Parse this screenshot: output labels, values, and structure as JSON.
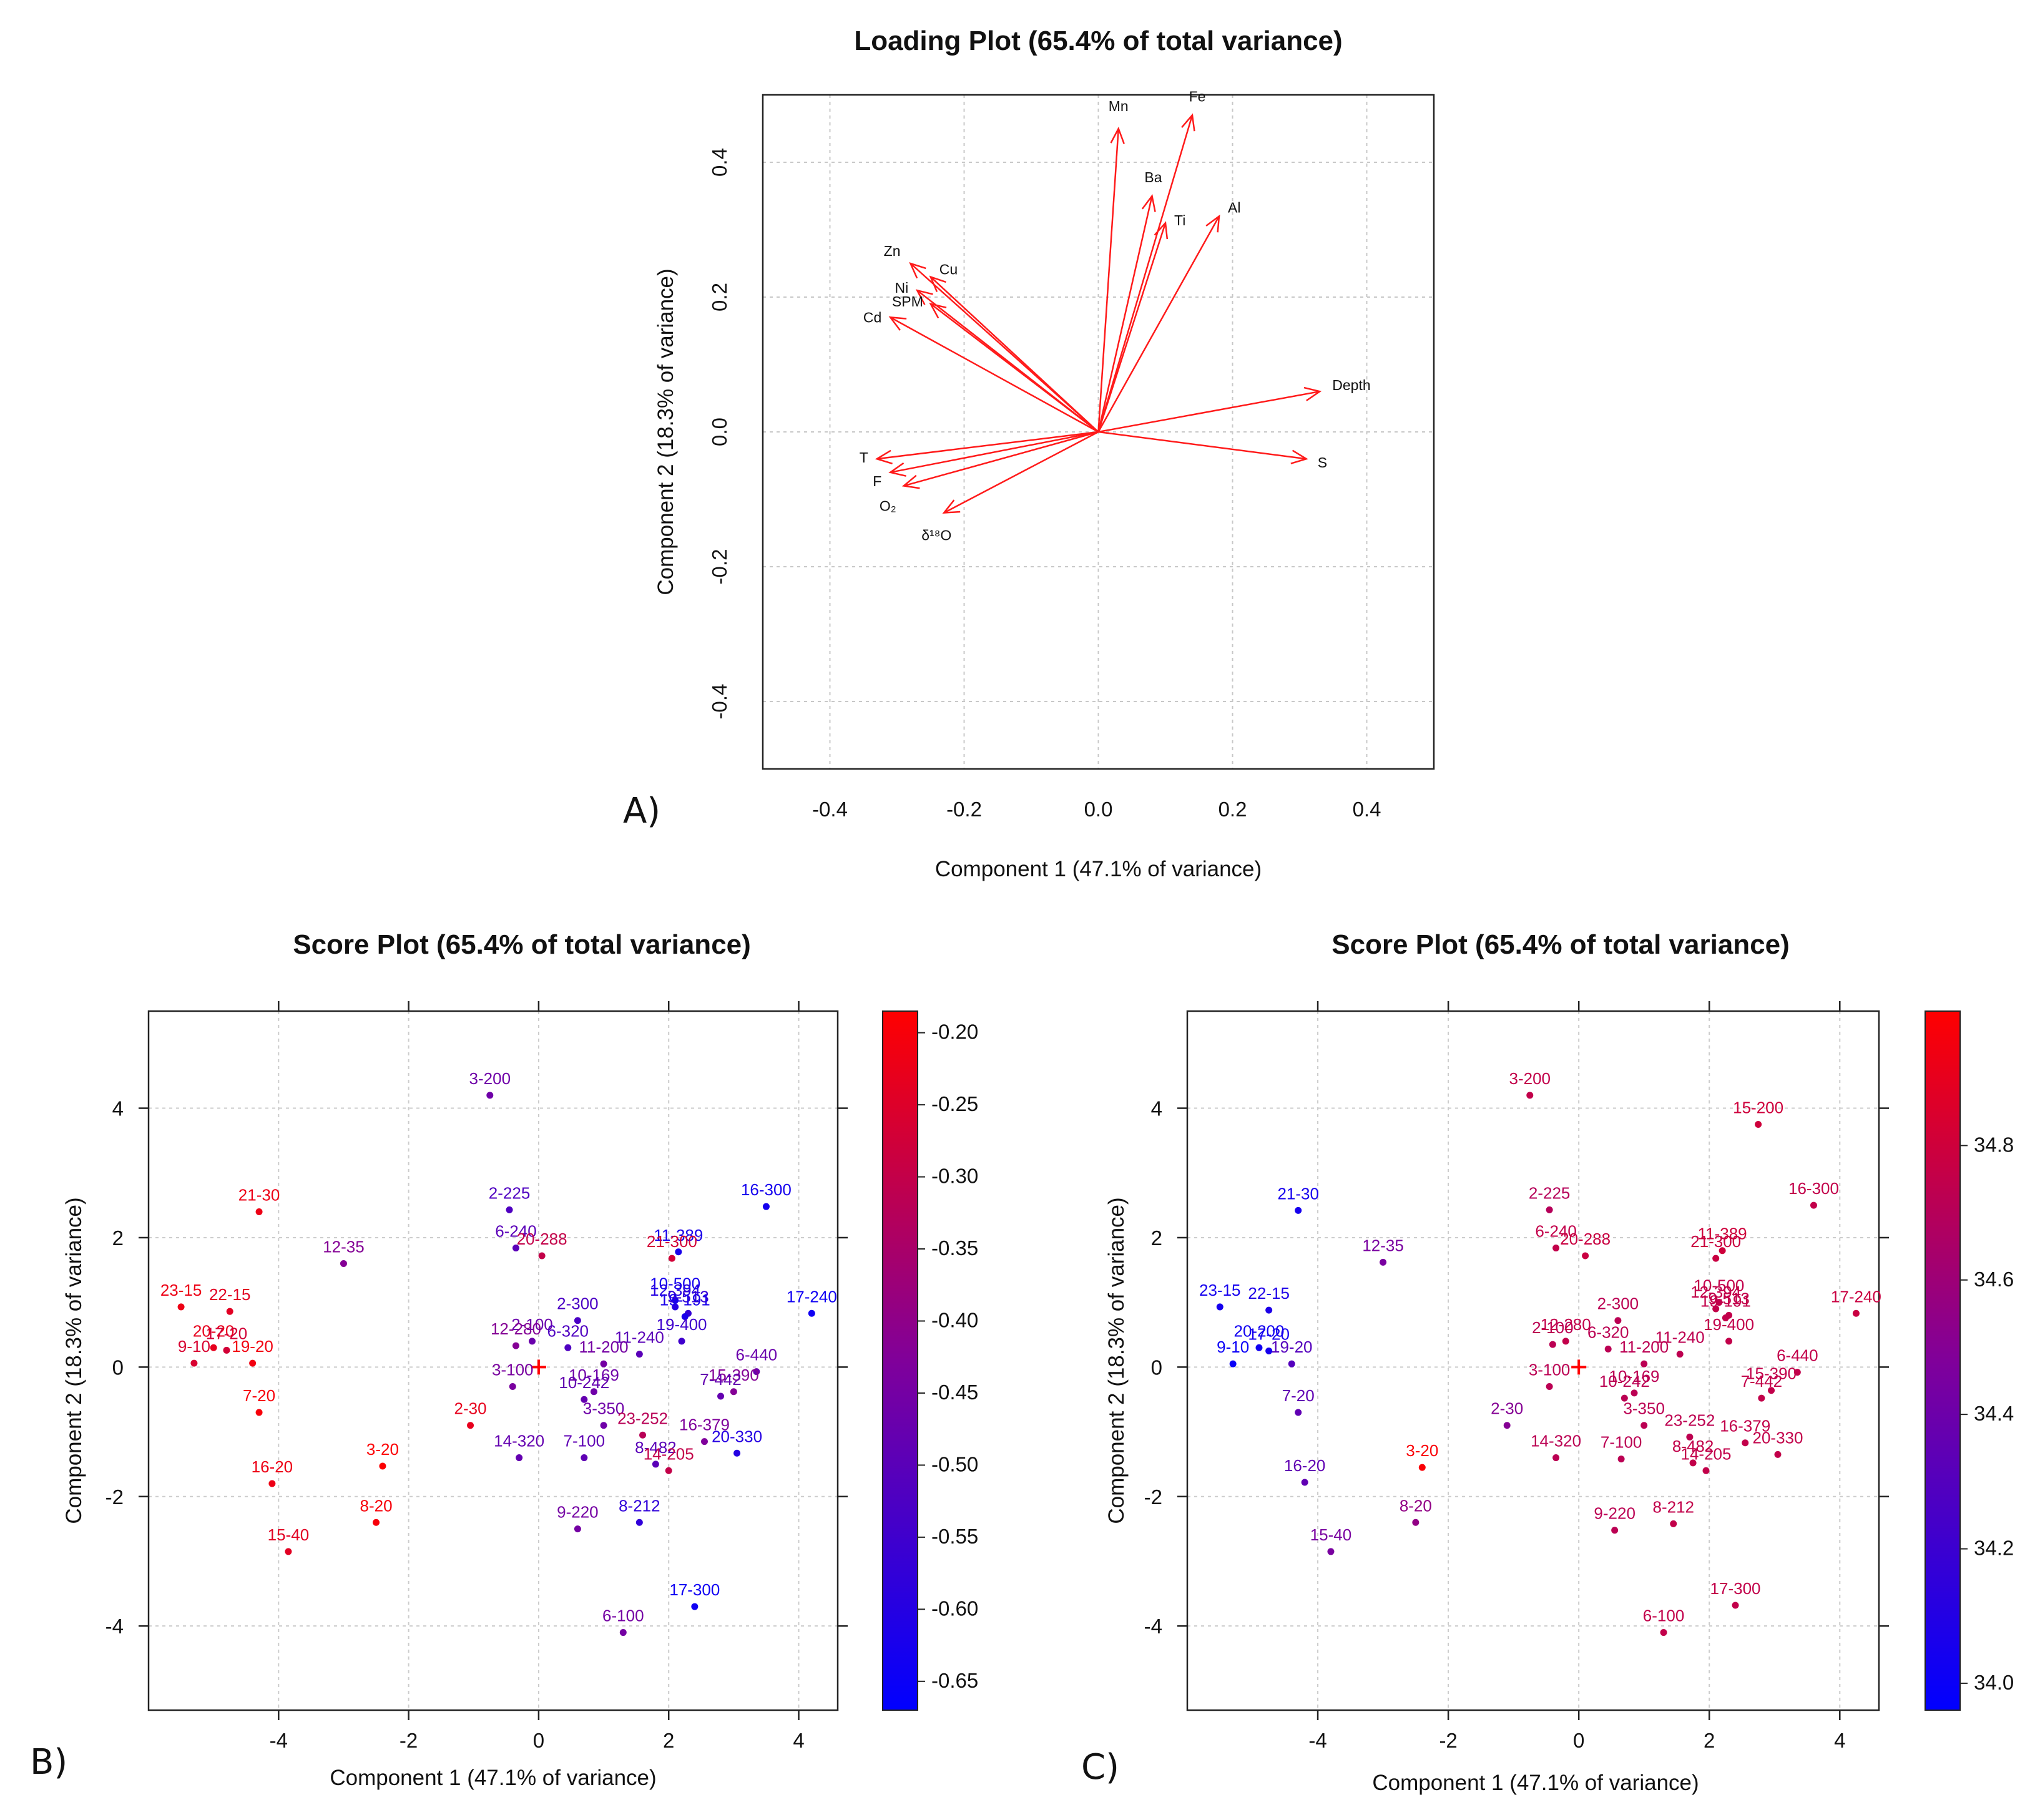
{
  "chart_data": [
    {
      "type": "biplot-loadings",
      "panel_label": "A)",
      "title": "Loading Plot (65.4% of total variance)",
      "xlabel": "Component 1 (47.1% of variance)",
      "ylabel": "Component 2 (18.3% of variance)",
      "xlim": [
        -0.5,
        0.5
      ],
      "ylim": [
        -0.5,
        0.5
      ],
      "grid": true,
      "xticks": [
        "-0.4",
        "-0.2",
        "0.0",
        "0.2",
        "0.4"
      ],
      "yticks": [
        "-0.4",
        "-0.2",
        "0.0",
        "0.2",
        "0.4"
      ],
      "vectors": [
        {
          "name": "Mn",
          "x": 0.03,
          "y": 0.45
        },
        {
          "name": "Fe",
          "x": 0.14,
          "y": 0.47
        },
        {
          "name": "Ba",
          "x": 0.08,
          "y": 0.35
        },
        {
          "name": "Ti",
          "x": 0.1,
          "y": 0.31
        },
        {
          "name": "Al",
          "x": 0.18,
          "y": 0.32
        },
        {
          "name": "Zn",
          "x": -0.28,
          "y": 0.25
        },
        {
          "name": "Cu",
          "x": -0.25,
          "y": 0.23
        },
        {
          "name": "Ni",
          "x": -0.27,
          "y": 0.21
        },
        {
          "name": "SPM",
          "x": -0.25,
          "y": 0.19
        },
        {
          "name": "Cd",
          "x": -0.31,
          "y": 0.17
        },
        {
          "name": "Depth",
          "x": 0.33,
          "y": 0.06
        },
        {
          "name": "S",
          "x": 0.31,
          "y": -0.04
        },
        {
          "name": "T",
          "x": -0.33,
          "y": -0.04
        },
        {
          "name": "F",
          "x": -0.31,
          "y": -0.06
        },
        {
          "name": "O₂",
          "x": -0.29,
          "y": -0.08
        },
        {
          "name": "δ¹⁸O",
          "x": -0.23,
          "y": -0.12
        }
      ]
    },
    {
      "type": "scatter",
      "panel_label": "B)",
      "title": "Score Plot (65.4% of total variance)",
      "xlabel": "Component 1 (47.1% of variance)",
      "ylabel": "Component 2 (18.3% of variance)",
      "xlim": [
        -6,
        4.6
      ],
      "ylim": [
        -5.3,
        5.5
      ],
      "grid": true,
      "xticks": [
        "-4",
        "-2",
        "0",
        "2",
        "4"
      ],
      "yticks": [
        "-4",
        "-2",
        "0",
        "2",
        "4"
      ],
      "colorbar": {
        "min": -0.67,
        "max": -0.185,
        "ticks": [
          "-0.20",
          "-0.25",
          "-0.30",
          "-0.35",
          "-0.40",
          "-0.45",
          "-0.50",
          "-0.55",
          "-0.60",
          "-0.65"
        ]
      },
      "points": [
        {
          "label": "3-200",
          "x": -0.75,
          "y": 4.2,
          "c": -0.46
        },
        {
          "label": "2-225",
          "x": -0.45,
          "y": 2.43,
          "c": -0.52
        },
        {
          "label": "21-30",
          "x": -4.3,
          "y": 2.4,
          "c": -0.22
        },
        {
          "label": "16-300",
          "x": 3.5,
          "y": 2.48,
          "c": -0.63
        },
        {
          "label": "6-240",
          "x": -0.35,
          "y": 1.84,
          "c": -0.5
        },
        {
          "label": "20-288",
          "x": 0.05,
          "y": 1.72,
          "c": -0.3
        },
        {
          "label": "11-389",
          "x": 2.15,
          "y": 1.78,
          "c": -0.62
        },
        {
          "label": "21-300",
          "x": 2.05,
          "y": 1.68,
          "c": -0.27
        },
        {
          "label": "12-35",
          "x": -3.0,
          "y": 1.6,
          "c": -0.42
        },
        {
          "label": "23-15",
          "x": -5.5,
          "y": 0.93,
          "c": -0.22
        },
        {
          "label": "22-15",
          "x": -4.75,
          "y": 0.86,
          "c": -0.24
        },
        {
          "label": "17-240",
          "x": 4.2,
          "y": 0.83,
          "c": -0.64
        },
        {
          "label": "10-500",
          "x": 2.1,
          "y": 1.03,
          "c": -0.63
        },
        {
          "label": "12-394",
          "x": 2.1,
          "y": 0.93,
          "c": -0.6
        },
        {
          "label": "9-513",
          "x": 2.3,
          "y": 0.83,
          "c": -0.57
        },
        {
          "label": "19-191",
          "x": 2.25,
          "y": 0.78,
          "c": -0.62
        },
        {
          "label": "2-300",
          "x": 0.6,
          "y": 0.72,
          "c": -0.53
        },
        {
          "label": "2-100",
          "x": -0.1,
          "y": 0.4,
          "c": -0.47
        },
        {
          "label": "6-320",
          "x": 0.45,
          "y": 0.3,
          "c": -0.52
        },
        {
          "label": "12-280",
          "x": -0.35,
          "y": 0.33,
          "c": -0.42
        },
        {
          "label": "11-240",
          "x": 1.55,
          "y": 0.2,
          "c": -0.5
        },
        {
          "label": "19-400",
          "x": 2.2,
          "y": 0.4,
          "c": -0.55
        },
        {
          "label": "6-440",
          "x": 3.35,
          "y": -0.07,
          "c": -0.47
        },
        {
          "label": "20-20",
          "x": -5.0,
          "y": 0.3,
          "c": -0.23
        },
        {
          "label": "17-20",
          "x": -4.8,
          "y": 0.26,
          "c": -0.27
        },
        {
          "label": "9-10",
          "x": -5.3,
          "y": 0.06,
          "c": -0.26
        },
        {
          "label": "19-20",
          "x": -4.4,
          "y": 0.06,
          "c": -0.21
        },
        {
          "label": "11-200",
          "x": 1.0,
          "y": 0.05,
          "c": -0.45
        },
        {
          "label": "3-100",
          "x": -0.4,
          "y": -0.3,
          "c": -0.44
        },
        {
          "label": "10-169",
          "x": 0.85,
          "y": -0.38,
          "c": -0.46
        },
        {
          "label": "10-242",
          "x": 0.7,
          "y": -0.5,
          "c": -0.48
        },
        {
          "label": "15-390",
          "x": 3.0,
          "y": -0.38,
          "c": -0.42
        },
        {
          "label": "7-442",
          "x": 2.8,
          "y": -0.45,
          "c": -0.48
        },
        {
          "label": "2-30",
          "x": -1.05,
          "y": -0.9,
          "c": -0.23
        },
        {
          "label": "7-20",
          "x": -4.3,
          "y": -0.7,
          "c": -0.2
        },
        {
          "label": "3-350",
          "x": 1.0,
          "y": -0.9,
          "c": -0.46
        },
        {
          "label": "23-252",
          "x": 1.6,
          "y": -1.05,
          "c": -0.32
        },
        {
          "label": "16-379",
          "x": 2.55,
          "y": -1.15,
          "c": -0.43
        },
        {
          "label": "20-330",
          "x": 3.05,
          "y": -1.33,
          "c": -0.6
        },
        {
          "label": "3-20",
          "x": -2.4,
          "y": -1.53,
          "c": -0.19
        },
        {
          "label": "14-320",
          "x": -0.3,
          "y": -1.4,
          "c": -0.48
        },
        {
          "label": "7-100",
          "x": 0.7,
          "y": -1.4,
          "c": -0.49
        },
        {
          "label": "8-482",
          "x": 1.8,
          "y": -1.5,
          "c": -0.5
        },
        {
          "label": "14-205",
          "x": 2.0,
          "y": -1.6,
          "c": -0.3
        },
        {
          "label": "16-20",
          "x": -4.1,
          "y": -1.8,
          "c": -0.22
        },
        {
          "label": "8-20",
          "x": -2.5,
          "y": -2.4,
          "c": -0.2
        },
        {
          "label": "9-220",
          "x": 0.6,
          "y": -2.5,
          "c": -0.45
        },
        {
          "label": "8-212",
          "x": 1.55,
          "y": -2.4,
          "c": -0.58
        },
        {
          "label": "15-40",
          "x": -3.85,
          "y": -2.85,
          "c": -0.24
        },
        {
          "label": "17-300",
          "x": 2.4,
          "y": -3.7,
          "c": -0.64
        },
        {
          "label": "6-100",
          "x": 1.3,
          "y": -4.1,
          "c": -0.45
        }
      ]
    },
    {
      "type": "scatter",
      "panel_label": "C)",
      "title": "Score Plot (65.4% of total variance)",
      "xlabel": "Component 1 (47.1% of variance)",
      "ylabel": "Component 2 (18.3% of variance)",
      "xlim": [
        -6,
        4.6
      ],
      "ylim": [
        -5.3,
        5.5
      ],
      "grid": true,
      "xticks": [
        "-4",
        "-2",
        "0",
        "2",
        "4"
      ],
      "yticks": [
        "-4",
        "-2",
        "0",
        "2",
        "4"
      ],
      "colorbar": {
        "min": 33.96,
        "max": 35.0,
        "ticks": [
          "34.8",
          "34.6",
          "34.4",
          "34.2",
          "34.0"
        ]
      },
      "points": [
        {
          "label": "3-200",
          "x": -0.75,
          "y": 4.2,
          "c": 34.75
        },
        {
          "label": "15-200",
          "x": 2.75,
          "y": 3.75,
          "c": 34.8
        },
        {
          "label": "16-300",
          "x": 3.6,
          "y": 2.5,
          "c": 34.75
        },
        {
          "label": "21-30",
          "x": -4.3,
          "y": 2.42,
          "c": 34.05
        },
        {
          "label": "2-225",
          "x": -0.45,
          "y": 2.43,
          "c": 34.7
        },
        {
          "label": "6-240",
          "x": -0.35,
          "y": 1.84,
          "c": 34.75
        },
        {
          "label": "20-288",
          "x": 0.1,
          "y": 1.72,
          "c": 34.78
        },
        {
          "label": "11-389",
          "x": 2.2,
          "y": 1.8,
          "c": 34.8
        },
        {
          "label": "21-300",
          "x": 2.1,
          "y": 1.68,
          "c": 34.78
        },
        {
          "label": "12-35",
          "x": -3.0,
          "y": 1.62,
          "c": 34.45
        },
        {
          "label": "23-15",
          "x": -5.5,
          "y": 0.93,
          "c": 34.05
        },
        {
          "label": "22-15",
          "x": -4.75,
          "y": 0.88,
          "c": 34.08
        },
        {
          "label": "17-240",
          "x": 4.25,
          "y": 0.83,
          "c": 34.78
        },
        {
          "label": "10-500",
          "x": 2.15,
          "y": 1.0,
          "c": 34.75
        },
        {
          "label": "12-394",
          "x": 2.1,
          "y": 0.9,
          "c": 34.75
        },
        {
          "label": "9-513",
          "x": 2.3,
          "y": 0.8,
          "c": 34.75
        },
        {
          "label": "19-191",
          "x": 2.25,
          "y": 0.76,
          "c": 34.75
        },
        {
          "label": "2-300",
          "x": 0.6,
          "y": 0.72,
          "c": 34.72
        },
        {
          "label": "2-100",
          "x": -0.4,
          "y": 0.35,
          "c": 34.72
        },
        {
          "label": "6-320",
          "x": 0.45,
          "y": 0.28,
          "c": 34.72
        },
        {
          "label": "12-280",
          "x": -0.2,
          "y": 0.4,
          "c": 34.75
        },
        {
          "label": "11-240",
          "x": 1.55,
          "y": 0.2,
          "c": 34.73
        },
        {
          "label": "19-400",
          "x": 2.3,
          "y": 0.4,
          "c": 34.75
        },
        {
          "label": "6-440",
          "x": 3.35,
          "y": -0.08,
          "c": 34.75
        },
        {
          "label": "20-200",
          "x": -4.9,
          "y": 0.3,
          "c": 34.03
        },
        {
          "label": "17-20",
          "x": -4.75,
          "y": 0.25,
          "c": 34.05
        },
        {
          "label": "9-10",
          "x": -5.3,
          "y": 0.05,
          "c": 34.0
        },
        {
          "label": "19-20",
          "x": -4.4,
          "y": 0.05,
          "c": 34.3
        },
        {
          "label": "11-200",
          "x": 1.0,
          "y": 0.05,
          "c": 34.72
        },
        {
          "label": "3-100",
          "x": -0.45,
          "y": -0.3,
          "c": 34.72
        },
        {
          "label": "10-169",
          "x": 0.85,
          "y": -0.4,
          "c": 34.72
        },
        {
          "label": "10-242",
          "x": 0.7,
          "y": -0.48,
          "c": 34.72
        },
        {
          "label": "15-390",
          "x": 2.95,
          "y": -0.36,
          "c": 34.75
        },
        {
          "label": "7-442",
          "x": 2.8,
          "y": -0.48,
          "c": 34.75
        },
        {
          "label": "2-30",
          "x": -1.1,
          "y": -0.9,
          "c": 34.5
        },
        {
          "label": "7-20",
          "x": -4.3,
          "y": -0.7,
          "c": 34.35
        },
        {
          "label": "3-350",
          "x": 1.0,
          "y": -0.9,
          "c": 34.72
        },
        {
          "label": "23-252",
          "x": 1.7,
          "y": -1.08,
          "c": 34.73
        },
        {
          "label": "16-379",
          "x": 2.55,
          "y": -1.17,
          "c": 34.75
        },
        {
          "label": "20-330",
          "x": 3.05,
          "y": -1.35,
          "c": 34.75
        },
        {
          "label": "3-20",
          "x": -2.4,
          "y": -1.55,
          "c": 34.98
        },
        {
          "label": "14-320",
          "x": -0.35,
          "y": -1.4,
          "c": 34.72
        },
        {
          "label": "7-100",
          "x": 0.65,
          "y": -1.42,
          "c": 34.72
        },
        {
          "label": "8-482",
          "x": 1.75,
          "y": -1.48,
          "c": 34.75
        },
        {
          "label": "14-205",
          "x": 1.95,
          "y": -1.6,
          "c": 34.75
        },
        {
          "label": "16-20",
          "x": -4.2,
          "y": -1.78,
          "c": 34.35
        },
        {
          "label": "8-20",
          "x": -2.5,
          "y": -2.4,
          "c": 34.55
        },
        {
          "label": "9-220",
          "x": 0.55,
          "y": -2.52,
          "c": 34.72
        },
        {
          "label": "8-212",
          "x": 1.45,
          "y": -2.42,
          "c": 34.75
        },
        {
          "label": "15-40",
          "x": -3.8,
          "y": -2.85,
          "c": 34.45
        },
        {
          "label": "17-300",
          "x": 2.4,
          "y": -3.68,
          "c": 34.75
        },
        {
          "label": "6-100",
          "x": 1.3,
          "y": -4.1,
          "c": 34.75
        }
      ]
    }
  ]
}
